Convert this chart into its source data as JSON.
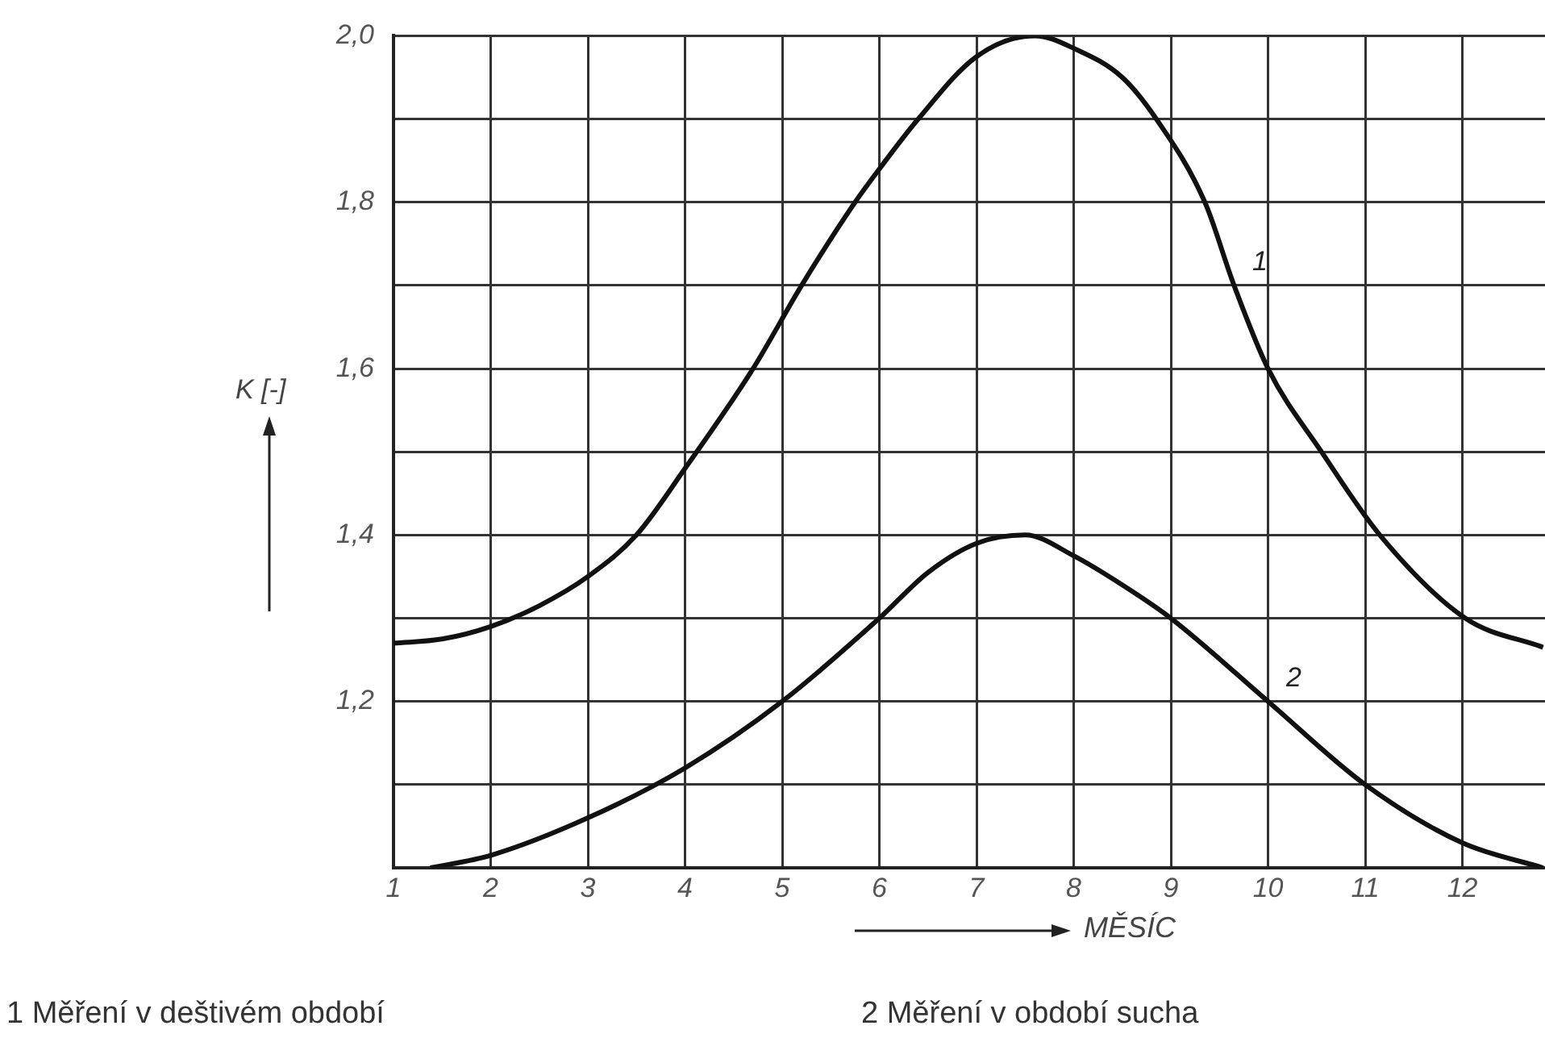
{
  "chart_data": {
    "type": "line",
    "xlabel": "MĚSÍC",
    "ylabel": "K [-]",
    "xlim": [
      1,
      12.85
    ],
    "xticks": [
      1,
      2,
      3,
      4,
      5,
      6,
      7,
      8,
      9,
      10,
      11,
      12
    ],
    "ylim": [
      1,
      2
    ],
    "yticks": [
      {
        "value": 1.0,
        "label": null
      },
      {
        "value": 1.1,
        "label": null
      },
      {
        "value": 1.2,
        "label": "1,2"
      },
      {
        "value": 1.3,
        "label": null
      },
      {
        "value": 1.4,
        "label": "1,4"
      },
      {
        "value": 1.5,
        "label": null
      },
      {
        "value": 1.6,
        "label": "1,6"
      },
      {
        "value": 1.7,
        "label": null
      },
      {
        "value": 1.8,
        "label": "1,8"
      },
      {
        "value": 1.9,
        "label": null
      },
      {
        "value": 2.0,
        "label": "2,0"
      }
    ],
    "grid": true,
    "series": [
      {
        "name": "1",
        "color": "#111111",
        "x": [
          1,
          1.5,
          2,
          2.5,
          3,
          3.5,
          4,
          4.7,
          5.2,
          5.75,
          6,
          6.4,
          7,
          7.6,
          8,
          8.5,
          8.85,
          9.35,
          9.65,
          10,
          10.55,
          11.15,
          12.03,
          12.83
        ],
        "values": [
          1.27,
          1.275,
          1.29,
          1.315,
          1.35,
          1.4,
          1.48,
          1.6,
          1.7,
          1.8,
          1.84,
          1.9,
          1.975,
          2.0,
          1.985,
          1.95,
          1.9,
          1.8,
          1.7,
          1.6,
          1.5,
          1.4,
          1.3,
          1.265
        ]
      },
      {
        "name": "2",
        "color": "#111111",
        "x": [
          1.38,
          2,
          3,
          4,
          5,
          6,
          6.5,
          7,
          7.5,
          8,
          8.5,
          9,
          10,
          11,
          12,
          12.83
        ],
        "values": [
          1.0,
          1.015,
          1.06,
          1.12,
          1.2,
          1.3,
          1.355,
          1.39,
          1.4,
          1.375,
          1.34,
          1.3,
          1.2,
          1.1,
          1.03,
          1.0
        ]
      }
    ],
    "annotations": [
      "1 Měření v deštivém období",
      "2 Měření v období sucha"
    ]
  }
}
